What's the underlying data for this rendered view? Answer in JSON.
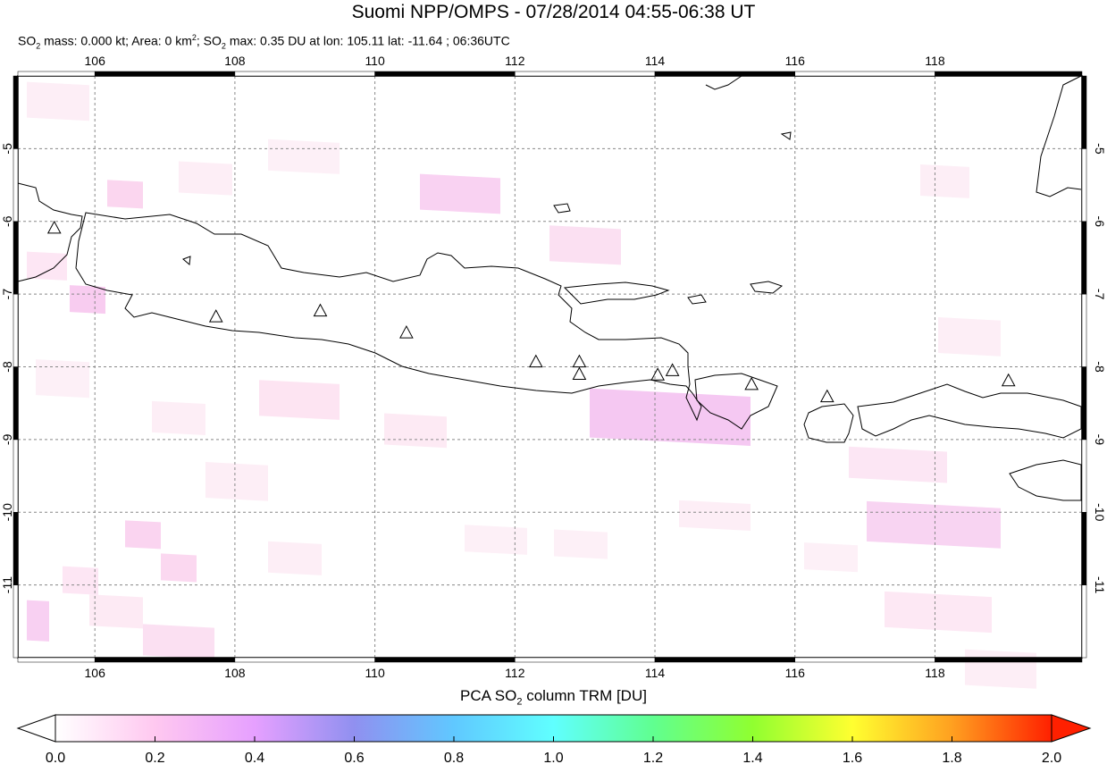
{
  "header": {
    "title": "Suomi NPP/OMPS - 07/28/2014 04:55-06:38 UT",
    "subtitle_parts": {
      "p1": "SO",
      "p1_sub": "2",
      "p2": " mass: 0.000 kt; Area: 0 km",
      "p2_sup": "2",
      "p3": "; SO",
      "p3_sub": "2",
      "p4": " max: 0.35 DU at lon: 105.11 lat: -11.64 ; 06:36UTC"
    }
  },
  "map": {
    "lon_ticks": [
      "106",
      "108",
      "110",
      "112",
      "114",
      "116",
      "118"
    ],
    "lat_ticks": [
      "-5",
      "-6",
      "-7",
      "-8",
      "-9",
      "-10",
      "-11"
    ],
    "lon_range": [
      104.9,
      120.1
    ],
    "lat_range": [
      -12.0,
      -4.0
    ],
    "volcano_marker_color": "#000000",
    "coastline_color": "#000000",
    "volcanoes": [
      {
        "lon": 105.42,
        "lat": -6.1
      },
      {
        "lon": 107.73,
        "lat": -7.32
      },
      {
        "lon": 109.22,
        "lat": -7.24
      },
      {
        "lon": 110.45,
        "lat": -7.54
      },
      {
        "lon": 112.3,
        "lat": -7.94
      },
      {
        "lon": 112.92,
        "lat": -7.94
      },
      {
        "lon": 112.92,
        "lat": -8.11
      },
      {
        "lon": 114.04,
        "lat": -8.12
      },
      {
        "lon": 114.25,
        "lat": -8.06
      },
      {
        "lon": 115.38,
        "lat": -8.25
      },
      {
        "lon": 116.46,
        "lat": -8.42
      },
      {
        "lon": 119.05,
        "lat": -8.2
      }
    ]
  },
  "colorbar": {
    "label_main": "PCA SO",
    "label_sub": "2",
    "label_tail": " column TRM [DU]",
    "ticks": [
      "0.0",
      "0.2",
      "0.4",
      "0.6",
      "0.8",
      "1.0",
      "1.2",
      "1.4",
      "1.6",
      "1.8",
      "2.0"
    ],
    "stops": [
      "#ffffff",
      "#ffc8f0",
      "#e6a0ff",
      "#9090f0",
      "#60c8ff",
      "#60ffff",
      "#60ff90",
      "#90ff30",
      "#ffff30",
      "#ffa020",
      "#ff2000"
    ]
  }
}
